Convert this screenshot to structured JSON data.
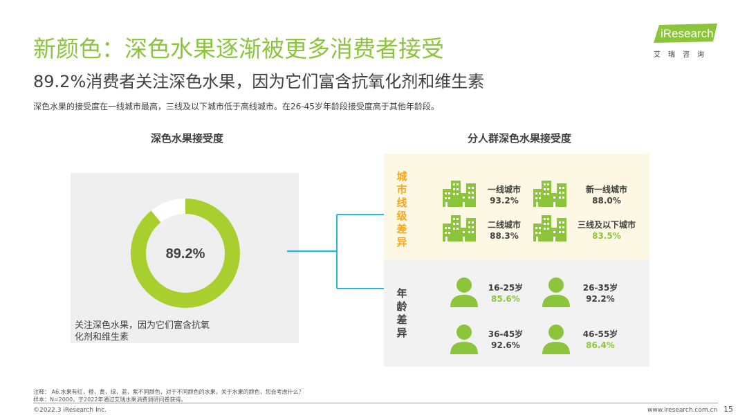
{
  "header": {
    "title": "新颜色：深色水果逐渐被更多消费者接受",
    "subtitle": "89.2%消费者关注深色水果，因为它们富含抗氧化剂和维生素",
    "description": "深色水果的接受度在一线城市最高，三线及以下城市低于高线城市。在26-45岁年龄段接受度高于其他年龄段。"
  },
  "logo": {
    "brand": "iResearch",
    "cn": "艾瑞咨询",
    "color": "#8cc43c"
  },
  "left_chart": {
    "section_title": "深色水果接受度",
    "center_label": "89.2%",
    "value": 89.2,
    "caption": "关注深色水果，因为它们富含抗氧化剂和维生素",
    "ring_color": "#a8cf2e",
    "track_color": "#ffffff"
  },
  "right_panel": {
    "section_title": "分人群深色水果接受度",
    "city": {
      "label": "城市线级差异",
      "items": [
        {
          "name": "一线城市",
          "value": "93.2%",
          "highlight": false
        },
        {
          "name": "新一线城市",
          "value": "88.0%",
          "highlight": false
        },
        {
          "name": "二线城市",
          "value": "88.3%",
          "highlight": false
        },
        {
          "name": "三线及以下城市",
          "value": "83.5%",
          "highlight": true
        }
      ]
    },
    "age": {
      "label": "年龄差异",
      "items": [
        {
          "name": "16-25岁",
          "value": "85.6%",
          "highlight": true
        },
        {
          "name": "26-35岁",
          "value": "92.2%",
          "highlight": false
        },
        {
          "name": "36-45岁",
          "value": "92.6%",
          "highlight": false
        },
        {
          "name": "46-55岁",
          "value": "86.4%",
          "highlight": true
        }
      ]
    },
    "connector_color": "#29b6e6",
    "city_label_color": "#f5a623",
    "icon_color": "#8cc43c"
  },
  "footer": {
    "note": "注释： A6.水果有红，橙，黄，绿，蓝，紫不同颜色，对于不同颜色的水果，关于水果的颜色，您会考虑什么？",
    "sample": "样本：N=2000，于2022年通过艾瑞水果消费调研问卷获得。",
    "copyright": "©2022.3 iResearch Inc.",
    "website": "www.iresearch.com.cn",
    "page": "15"
  }
}
